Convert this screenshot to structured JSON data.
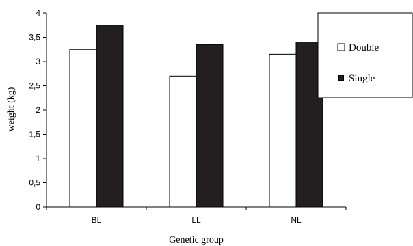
{
  "chart_data": {
    "type": "bar",
    "categories": [
      "BL",
      "LL",
      "NL"
    ],
    "series": [
      {
        "name": "Double",
        "values": [
          3.25,
          2.7,
          3.15
        ],
        "fill": "#ffffff"
      },
      {
        "name": "Single",
        "values": [
          3.75,
          3.35,
          3.4
        ],
        "fill": "#231f20"
      }
    ],
    "xlabel": "Genetic group",
    "ylabel": "weight  (kg)",
    "ylim": [
      0,
      4
    ],
    "yticks": [
      0,
      0.5,
      1,
      1.5,
      2,
      2.5,
      3,
      3.5,
      4
    ],
    "ytick_labels": [
      "0",
      "0,5",
      "1",
      "1,5",
      "2",
      "2,5",
      "3",
      "3,5",
      "4"
    ],
    "grid": false,
    "legend_position": "right"
  }
}
